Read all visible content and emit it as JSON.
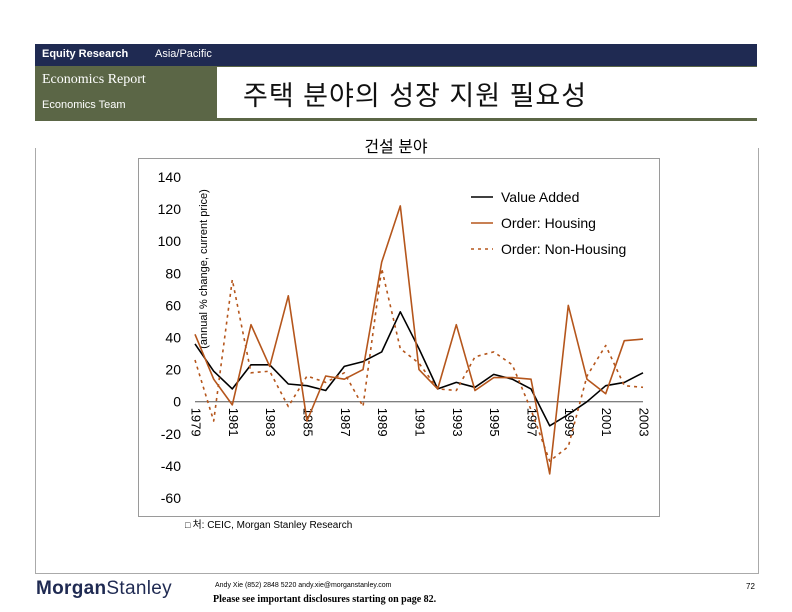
{
  "header": {
    "bar_left": "Equity Research",
    "bar_right": "Asia/Pacific",
    "report_title": "Economics Report",
    "team": "Economics Team",
    "headline": "주택 분야의 성장 지원 필요성"
  },
  "chart_caption": "건설 분야",
  "chart_data": {
    "type": "line",
    "title": "",
    "xlabel": "",
    "ylabel": "(annual % change, current price)",
    "x": [
      1979,
      1980,
      1981,
      1982,
      1983,
      1984,
      1985,
      1986,
      1987,
      1988,
      1989,
      1990,
      1991,
      1992,
      1993,
      1994,
      1995,
      1996,
      1997,
      1998,
      1999,
      2000,
      2001,
      2002,
      2003
    ],
    "x_tick_labels": [
      "1979",
      "1981",
      "1983",
      "1985",
      "1987",
      "1989",
      "1991",
      "1993",
      "1995",
      "1997",
      "1999",
      "2001",
      "2003"
    ],
    "ylim": [
      -60,
      140
    ],
    "y_ticks": [
      140,
      120,
      100,
      80,
      60,
      40,
      20,
      0,
      -20,
      -40,
      -60
    ],
    "grid": false,
    "legend_position": "top-right",
    "series": [
      {
        "name": "Value Added",
        "color": "#000000",
        "dash": "solid",
        "values": [
          36,
          19,
          8,
          23,
          23,
          11,
          10,
          7,
          22,
          25,
          31,
          56,
          33,
          8,
          12,
          9,
          17,
          14,
          8,
          -15,
          -8,
          0,
          10,
          12,
          18
        ]
      },
      {
        "name": "Order: Housing",
        "color": "#b5561c",
        "dash": "solid",
        "values": [
          42,
          14,
          -2,
          48,
          22,
          66,
          -12,
          16,
          14,
          20,
          87,
          122,
          20,
          8,
          48,
          7,
          15,
          15,
          14,
          -45,
          60,
          14,
          5,
          38,
          39
        ]
      },
      {
        "name": "Order: Non-Housing",
        "color": "#b5561c",
        "dash": "dotted",
        "values": [
          26,
          -12,
          76,
          18,
          19,
          -3,
          16,
          12,
          18,
          -3,
          83,
          33,
          24,
          8,
          7,
          28,
          31,
          23,
          -5,
          -37,
          -28,
          16,
          35,
          10,
          9
        ]
      }
    ]
  },
  "source": {
    "icon": "source-glyph",
    "text": "처: CEIC, Morgan Stanley Research"
  },
  "footer": {
    "logo_part1": "Morgan",
    "logo_part2": "Stanley",
    "contact": "Andy Xie (852) 2848 5220 andy.xie@morganstanley.com",
    "disclaimer": "Please see important disclosures starting on page 82.",
    "page_number": "72"
  }
}
